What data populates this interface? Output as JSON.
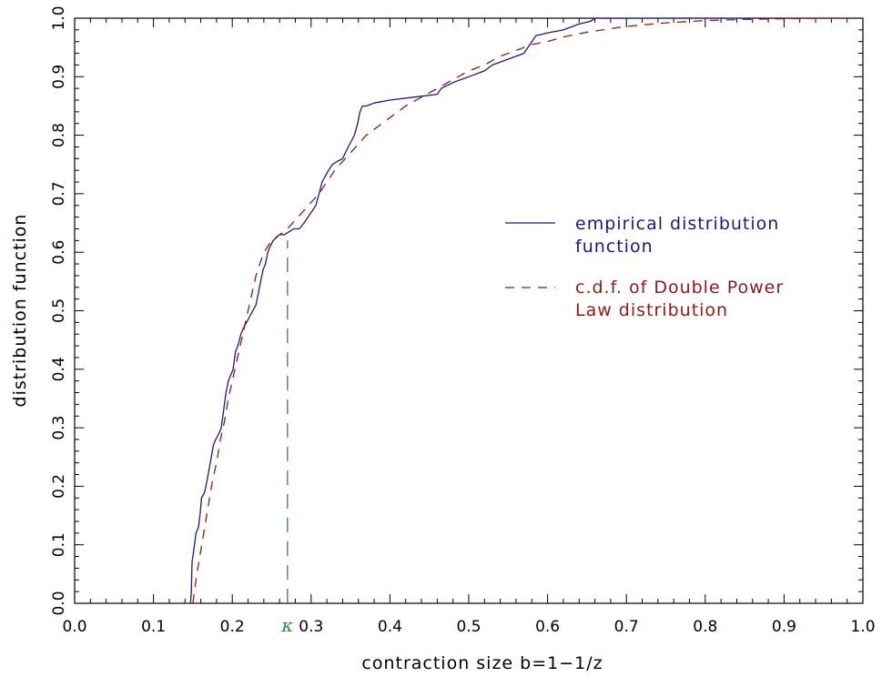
{
  "chart_data": {
    "type": "line",
    "xlabel": "contraction size b=1−1/z",
    "ylabel": "distribution function",
    "xlim": [
      0.0,
      1.0
    ],
    "ylim": [
      0.0,
      1.0
    ],
    "x_ticks": [
      "0.0",
      "0.1",
      "0.2",
      "0.3",
      "0.4",
      "0.5",
      "0.6",
      "0.7",
      "0.8",
      "0.9",
      "1.0"
    ],
    "y_ticks": [
      "0.0",
      "0.1",
      "0.2",
      "0.3",
      "0.4",
      "0.5",
      "0.6",
      "0.7",
      "0.8",
      "0.9",
      "1.0"
    ],
    "grid": false,
    "legend_position": "right-center",
    "series": [
      {
        "name": "empirical distribution function",
        "style": "solid",
        "color": "#1a1a7a",
        "x": [
          0.147,
          0.148,
          0.149,
          0.151,
          0.154,
          0.157,
          0.159,
          0.161,
          0.165,
          0.168,
          0.172,
          0.176,
          0.179,
          0.183,
          0.186,
          0.189,
          0.192,
          0.195,
          0.198,
          0.201,
          0.204,
          0.207,
          0.211,
          0.214,
          0.218,
          0.222,
          0.226,
          0.23,
          0.233,
          0.236,
          0.239,
          0.242,
          0.245,
          0.248,
          0.252,
          0.256,
          0.26,
          0.266,
          0.272,
          0.278,
          0.285,
          0.291,
          0.296,
          0.301,
          0.306,
          0.31,
          0.314,
          0.318,
          0.322,
          0.327,
          0.333,
          0.34,
          0.347,
          0.351,
          0.355,
          0.359,
          0.362,
          0.365,
          0.37,
          0.38,
          0.4,
          0.43,
          0.46,
          0.465,
          0.48,
          0.5,
          0.52,
          0.53,
          0.55,
          0.57,
          0.58,
          0.585,
          0.6,
          0.62,
          0.64,
          0.655,
          0.66,
          0.67,
          1.0
        ],
        "y": [
          0.0,
          0.02,
          0.07,
          0.09,
          0.12,
          0.13,
          0.15,
          0.18,
          0.19,
          0.21,
          0.24,
          0.27,
          0.28,
          0.29,
          0.3,
          0.33,
          0.36,
          0.38,
          0.39,
          0.4,
          0.43,
          0.44,
          0.46,
          0.47,
          0.48,
          0.49,
          0.5,
          0.51,
          0.53,
          0.55,
          0.57,
          0.58,
          0.6,
          0.61,
          0.62,
          0.625,
          0.63,
          0.63,
          0.635,
          0.64,
          0.64,
          0.65,
          0.66,
          0.67,
          0.68,
          0.7,
          0.72,
          0.73,
          0.74,
          0.75,
          0.755,
          0.76,
          0.78,
          0.79,
          0.8,
          0.82,
          0.84,
          0.85,
          0.85,
          0.855,
          0.86,
          0.865,
          0.87,
          0.88,
          0.89,
          0.9,
          0.91,
          0.92,
          0.93,
          0.94,
          0.96,
          0.97,
          0.975,
          0.98,
          0.99,
          0.995,
          1.0,
          1.0,
          1.0
        ]
      },
      {
        "name": "c.d.f. of Double Power Law distribution",
        "style": "dashed",
        "color": "#8b1a1a",
        "x": [
          0.15,
          0.155,
          0.16,
          0.165,
          0.17,
          0.175,
          0.18,
          0.185,
          0.19,
          0.195,
          0.2,
          0.205,
          0.21,
          0.215,
          0.22,
          0.225,
          0.23,
          0.235,
          0.24,
          0.245,
          0.25,
          0.255,
          0.26,
          0.265,
          0.27,
          0.28,
          0.29,
          0.3,
          0.31,
          0.32,
          0.33,
          0.34,
          0.35,
          0.36,
          0.37,
          0.38,
          0.39,
          0.4,
          0.42,
          0.44,
          0.46,
          0.48,
          0.5,
          0.52,
          0.54,
          0.56,
          0.58,
          0.6,
          0.62,
          0.65,
          0.7,
          0.75,
          0.8,
          0.85,
          0.9,
          0.95,
          1.0
        ],
        "y": [
          0.0,
          0.05,
          0.09,
          0.13,
          0.17,
          0.21,
          0.24,
          0.28,
          0.31,
          0.35,
          0.38,
          0.41,
          0.44,
          0.47,
          0.5,
          0.53,
          0.56,
          0.58,
          0.6,
          0.61,
          0.62,
          0.625,
          0.63,
          0.635,
          0.64,
          0.655,
          0.67,
          0.685,
          0.7,
          0.72,
          0.74,
          0.755,
          0.77,
          0.785,
          0.8,
          0.81,
          0.82,
          0.83,
          0.85,
          0.865,
          0.88,
          0.895,
          0.91,
          0.92,
          0.935,
          0.945,
          0.955,
          0.96,
          0.968,
          0.976,
          0.986,
          0.992,
          0.996,
          0.998,
          0.999,
          1.0,
          1.0
        ]
      }
    ],
    "annotations": [
      {
        "label": "κ",
        "x": 0.27,
        "y_top": 0.62,
        "style": "dashed",
        "color": "#2e8b2e"
      }
    ]
  }
}
